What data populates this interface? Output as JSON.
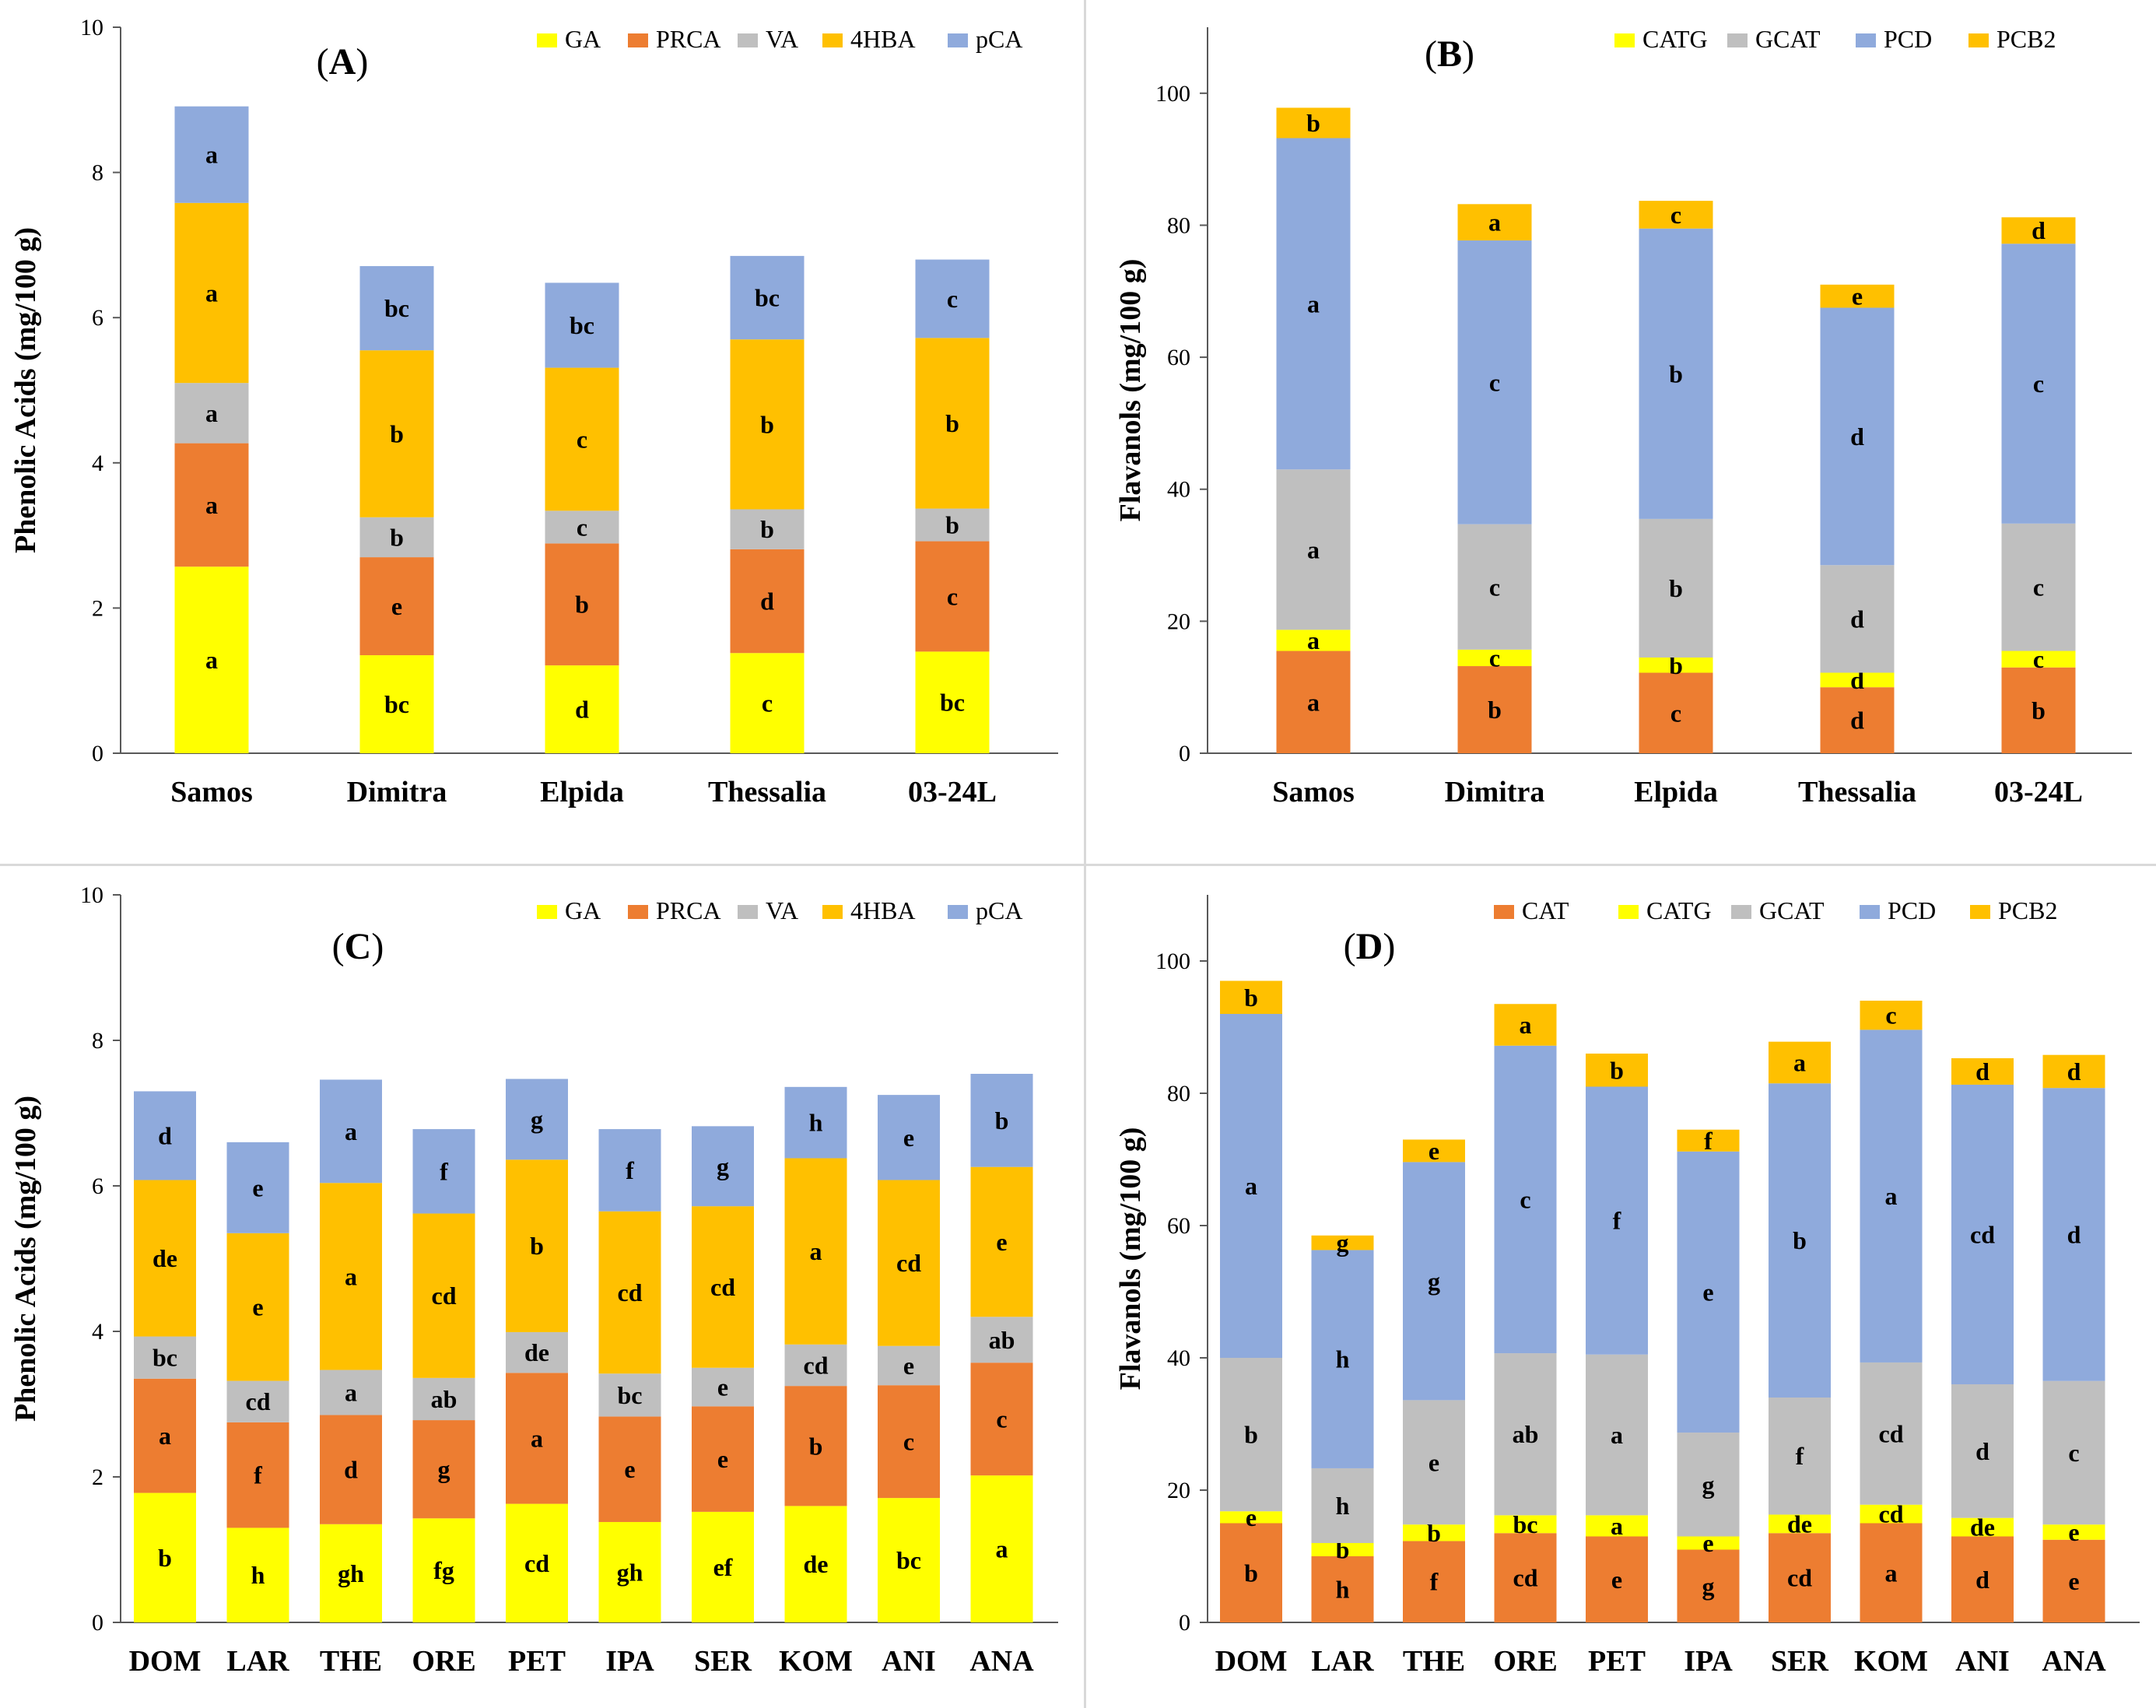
{
  "colors": {
    "CAT": "#ED7D31",
    "GA": "#FFFF00",
    "PRCA": "#ED7D31",
    "VA": "#BFBFBF",
    "4HBA": "#FFC000",
    "pCA": "#8FAADC",
    "CATG": "#FFFF00",
    "GCAT": "#BFBFBF",
    "PCD": "#8FAADC",
    "PCB2": "#FFC000"
  },
  "chart_data": [
    {
      "panel": "A",
      "type": "bar",
      "stacked": true,
      "title": "(A)",
      "ylabel": "Phenolic Acids (mg/100 g)",
      "ylim": [
        0,
        10
      ],
      "yticks": [
        "0",
        "2",
        "4",
        "6",
        "8",
        "10"
      ],
      "legend_position": "top-right",
      "categories": [
        "Samos",
        "Dimitra",
        "Elpida",
        "Thessalia",
        "03-24L"
      ],
      "series": [
        {
          "name": "GA",
          "values": [
            2.57,
            1.35,
            1.21,
            1.38,
            1.4
          ],
          "letters": [
            "a",
            "bc",
            "d",
            "c",
            "bc"
          ]
        },
        {
          "name": "PRCA",
          "values": [
            1.7,
            1.35,
            1.68,
            1.43,
            1.52
          ],
          "letters": [
            "a",
            "e",
            "b",
            "d",
            "c"
          ]
        },
        {
          "name": "VA",
          "values": [
            0.83,
            0.55,
            0.45,
            0.55,
            0.45
          ],
          "letters": [
            "a",
            "b",
            "c",
            "b",
            "b"
          ]
        },
        {
          "name": "4HBA",
          "values": [
            2.48,
            2.3,
            1.97,
            2.34,
            2.35
          ],
          "letters": [
            "a",
            "b",
            "c",
            "b",
            "b"
          ]
        },
        {
          "name": "pCA",
          "values": [
            1.33,
            1.16,
            1.17,
            1.15,
            1.08
          ],
          "letters": [
            "a",
            "bc",
            "bc",
            "bc",
            "c"
          ]
        }
      ]
    },
    {
      "panel": "B",
      "type": "bar",
      "stacked": true,
      "title": "(B)",
      "ylabel": "Flavanols (mg/100 g)",
      "ylim": [
        0,
        110
      ],
      "yticks": [
        "0",
        "20",
        "40",
        "60",
        "80",
        "100"
      ],
      "legend_position": "top-right",
      "categories": [
        "Samos",
        "Dimitra",
        "Elpida",
        "Thessalia",
        "03-24L"
      ],
      "series": [
        {
          "name": "CAT",
          "legend": false,
          "values": [
            15.5,
            13.2,
            12.2,
            10.0,
            13.0
          ],
          "letters": [
            "a",
            "b",
            "c",
            "d",
            "b"
          ]
        },
        {
          "name": "CATG",
          "values": [
            3.2,
            2.5,
            2.3,
            2.2,
            2.5
          ],
          "letters": [
            "a",
            "c",
            "b",
            "d",
            "c"
          ]
        },
        {
          "name": "GCAT",
          "values": [
            24.3,
            19.0,
            21.0,
            16.3,
            19.3
          ],
          "letters": [
            "a",
            "c",
            "b",
            "d",
            "c"
          ]
        },
        {
          "name": "PCD",
          "values": [
            50.2,
            43.0,
            44.0,
            39.0,
            42.4
          ],
          "letters": [
            "a",
            "c",
            "b",
            "d",
            "c"
          ]
        },
        {
          "name": "PCB2",
          "values": [
            4.6,
            5.5,
            4.2,
            3.5,
            4.0
          ],
          "letters": [
            "b",
            "a",
            "c",
            "e",
            "d"
          ]
        }
      ]
    },
    {
      "panel": "C",
      "type": "bar",
      "stacked": true,
      "title": "(C)",
      "ylabel": "Phenolic Acids (mg/100 g)",
      "ylim": [
        0,
        10
      ],
      "yticks": [
        "0",
        "2",
        "4",
        "6",
        "8",
        "10"
      ],
      "legend_position": "top-right",
      "categories": [
        "DOM",
        "LAR",
        "THE",
        "ORE",
        "PET",
        "IPA",
        "SER",
        "KOM",
        "ANI",
        "ANA"
      ],
      "series": [
        {
          "name": "GA",
          "values": [
            1.78,
            1.3,
            1.35,
            1.43,
            1.63,
            1.38,
            1.52,
            1.6,
            1.71,
            2.02
          ],
          "letters": [
            "b",
            "h",
            "gh",
            "fg",
            "cd",
            "gh",
            "ef",
            "de",
            "bc",
            "a"
          ]
        },
        {
          "name": "PRCA",
          "values": [
            1.57,
            1.45,
            1.5,
            1.35,
            1.8,
            1.45,
            1.45,
            1.65,
            1.55,
            1.55
          ],
          "letters": [
            "a",
            "f",
            "d",
            "g",
            "a",
            "e",
            "e",
            "b",
            "c",
            "c"
          ]
        },
        {
          "name": "VA",
          "values": [
            0.58,
            0.57,
            0.62,
            0.58,
            0.56,
            0.59,
            0.53,
            0.57,
            0.54,
            0.63
          ],
          "letters": [
            "bc",
            "cd",
            "a",
            "ab",
            "de",
            "bc",
            "e",
            "cd",
            "e",
            "ab"
          ]
        },
        {
          "name": "4HBA",
          "values": [
            2.15,
            2.03,
            2.57,
            2.26,
            2.37,
            2.23,
            2.22,
            2.56,
            2.28,
            2.06
          ],
          "letters": [
            "de",
            "e",
            "a",
            "cd",
            "b",
            "cd",
            "cd",
            "a",
            "cd",
            "e"
          ]
        },
        {
          "name": "pCA",
          "values": [
            1.22,
            1.25,
            1.42,
            1.16,
            1.11,
            1.13,
            1.1,
            0.98,
            1.17,
            1.28
          ],
          "letters": [
            "d",
            "e",
            "a",
            "f",
            "g",
            "f",
            "g",
            "h",
            "e",
            "b"
          ]
        }
      ]
    },
    {
      "panel": "D",
      "type": "bar",
      "stacked": true,
      "title": "(D)",
      "ylabel": "Flavanols (mg/100 g)",
      "ylim": [
        0,
        110
      ],
      "yticks": [
        "0",
        "20",
        "40",
        "60",
        "80",
        "100"
      ],
      "legend_position": "top-right",
      "categories": [
        "DOM",
        "LAR",
        "THE",
        "ORE",
        "PET",
        "IPA",
        "SER",
        "KOM",
        "ANI",
        "ANA"
      ],
      "series": [
        {
          "name": "CAT",
          "values": [
            15.0,
            10.0,
            12.3,
            13.5,
            13.0,
            11.0,
            13.5,
            15.0,
            13.0,
            12.5
          ],
          "letters": [
            "b",
            "h",
            "f",
            "cd",
            "e",
            "g",
            "cd",
            "a",
            "d",
            "e"
          ]
        },
        {
          "name": "CATG",
          "values": [
            1.8,
            2.0,
            2.5,
            2.7,
            3.2,
            2.0,
            2.8,
            2.8,
            2.8,
            2.3
          ],
          "letters": [
            "e",
            "b",
            "b",
            "bc",
            "a",
            "e",
            "de",
            "cd",
            "de",
            "e"
          ]
        },
        {
          "name": "GCAT",
          "values": [
            23.2,
            11.3,
            18.8,
            24.5,
            24.3,
            15.7,
            17.7,
            21.5,
            20.2,
            21.7
          ],
          "letters": [
            "b",
            "h",
            "e",
            "ab",
            "a",
            "g",
            "f",
            "cd",
            "d",
            "c"
          ]
        },
        {
          "name": "PCD",
          "values": [
            52.0,
            33.0,
            36.0,
            46.5,
            40.5,
            42.5,
            47.5,
            50.3,
            45.3,
            44.3
          ],
          "letters": [
            "a",
            "h",
            "g",
            "c",
            "f",
            "e",
            "b",
            "a",
            "cd",
            "d"
          ]
        },
        {
          "name": "PCB2",
          "values": [
            5.0,
            2.2,
            3.4,
            6.3,
            5.0,
            3.3,
            6.3,
            4.4,
            4.0,
            5.0
          ],
          "letters": [
            "b",
            "g",
            "e",
            "a",
            "b",
            "f",
            "a",
            "c",
            "d",
            "d"
          ]
        }
      ]
    }
  ]
}
